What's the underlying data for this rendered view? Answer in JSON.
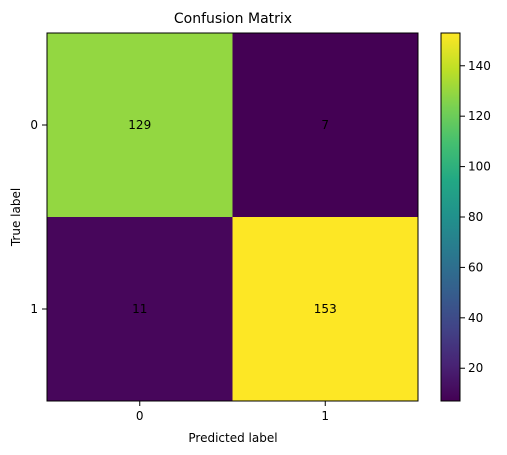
{
  "chart_data": {
    "type": "heatmap",
    "title": "Confusion Matrix",
    "xlabel": "Predicted label",
    "ylabel": "True label",
    "x_categories": [
      "0",
      "1"
    ],
    "y_categories": [
      "0",
      "1"
    ],
    "matrix": [
      [
        129,
        7
      ],
      [
        11,
        153
      ]
    ],
    "colormap": "viridis",
    "colorbar": {
      "min": 7,
      "max": 153,
      "ticks": [
        20,
        40,
        60,
        80,
        100,
        120,
        140
      ]
    },
    "cell_colors": [
      [
        "#93d741",
        "#440154"
      ],
      [
        "#47065b",
        "#fde725"
      ]
    ],
    "text_colors": [
      [
        "#1f1f1f",
        "#fde725"
      ],
      [
        "#fde725",
        "#1f1f1f"
      ]
    ]
  }
}
